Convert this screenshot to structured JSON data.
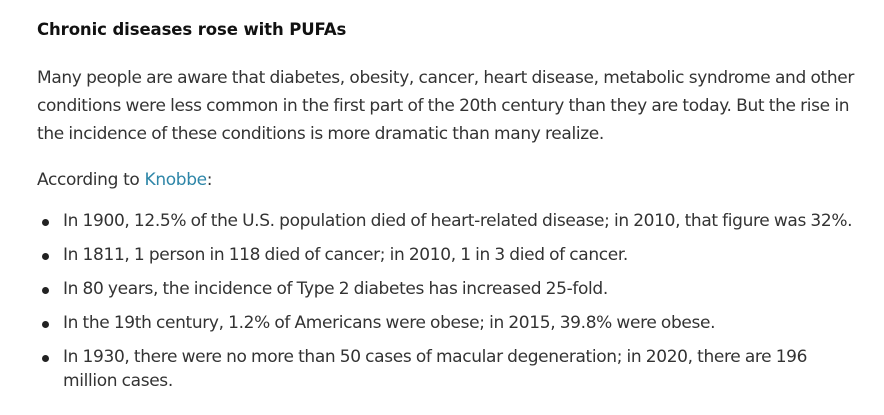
{
  "article": {
    "heading": "Chronic diseases rose with PUFAs",
    "paragraph_lines": [
      "Many people are aware that diabetes, obesity, cancer, heart disease, metabolic syndrome and other",
      "conditions were less common in the first part of the 20th century than they are today. But the rise in",
      "the incidence of these conditions is more dramatic than many realize."
    ],
    "intro_prefix": "According to ",
    "intro_link": "Knobbe",
    "intro_suffix": ":",
    "bullets": [
      "In 1900, 12.5% of the U.S. population died of heart-related disease; in 2010, that figure was 32%.",
      "In 1811, 1 person in 118 died of cancer; in 2010, 1 in 3 died of cancer.",
      "In 80 years, the incidence of Type 2 diabetes has increased 25-fold.",
      "In the 19th century, 1.2% of Americans were obese; in 2015, 39.8% were obese.",
      "In 1930, there were no more than 50 cases of macular degeneration; in 2020, there are 196 million cases."
    ],
    "link_color": "#2e86a8"
  }
}
